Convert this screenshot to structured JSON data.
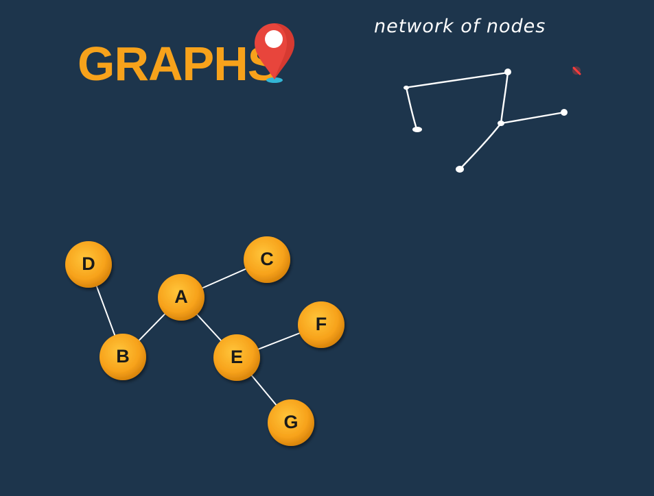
{
  "title": "GRAPHS",
  "annotation": "network of nodes",
  "graph": {
    "nodes": [
      "D",
      "C",
      "A",
      "F",
      "B",
      "E",
      "G"
    ],
    "edges": [
      [
        "D",
        "B"
      ],
      [
        "B",
        "A"
      ],
      [
        "A",
        "C"
      ],
      [
        "A",
        "E"
      ],
      [
        "E",
        "F"
      ],
      [
        "E",
        "G"
      ]
    ]
  },
  "colors": {
    "background": "#1d354c",
    "title": "#f7a21b",
    "node_fill": "#f7a21b",
    "edge": "#ffffff",
    "pin": "#e8453c"
  },
  "icons": [
    "location-pin-icon"
  ]
}
